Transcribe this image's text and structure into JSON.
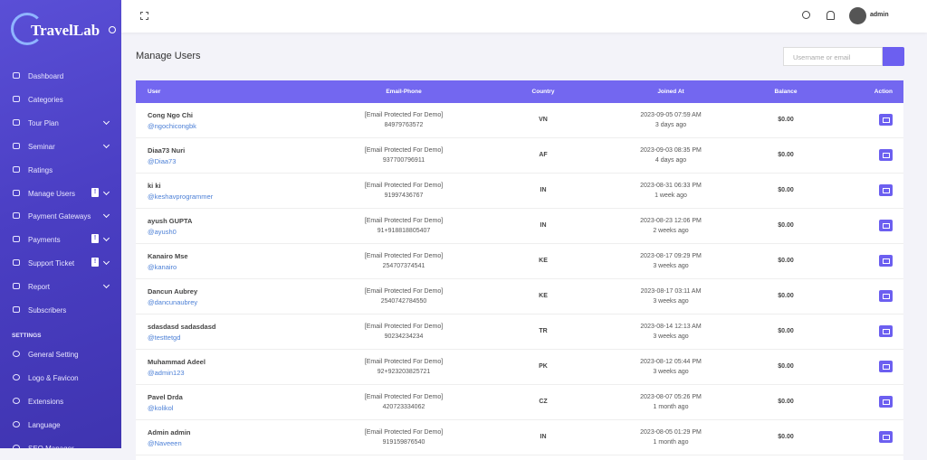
{
  "sidebar": {
    "logo": "TravelLab",
    "items": [
      {
        "label": "Dashboard",
        "submenu": false
      },
      {
        "label": "Categories",
        "submenu": false
      },
      {
        "label": "Tour Plan",
        "submenu": true
      },
      {
        "label": "Seminar",
        "submenu": true
      },
      {
        "label": "Ratings",
        "submenu": false
      },
      {
        "label": "Manage Users",
        "submenu": true,
        "badge": "!"
      },
      {
        "label": "Payment Gateways",
        "submenu": true
      },
      {
        "label": "Payments",
        "submenu": true,
        "badge": "!"
      },
      {
        "label": "Support Ticket",
        "submenu": true,
        "badge": "!"
      },
      {
        "label": "Report",
        "submenu": true
      },
      {
        "label": "Subscribers",
        "submenu": false
      }
    ],
    "section": "SETTINGS",
    "settings": [
      {
        "label": "General Setting"
      },
      {
        "label": "Logo & Favicon"
      },
      {
        "label": "Extensions"
      },
      {
        "label": "Language"
      },
      {
        "label": "SEO Manager"
      }
    ]
  },
  "header": {
    "user": "admin"
  },
  "page": {
    "title": "Manage Users",
    "search_placeholder": "Username or email"
  },
  "table": {
    "columns": [
      "User",
      "Email-Phone",
      "Country",
      "Joined At",
      "Balance",
      "Action"
    ],
    "rows": [
      {
        "name": "Cong Ngo Chi",
        "username": "@ngochicongbk",
        "email": "[Email Protected For Demo]",
        "phone": "84979763572",
        "country": "VN",
        "joined": "2023-09-05 07:59 AM",
        "ago": "3 days ago",
        "balance": "$0.00"
      },
      {
        "name": "Diaa73 Nuri",
        "username": "@Diaa73",
        "email": "[Email Protected For Demo]",
        "phone": "937700796911",
        "country": "AF",
        "joined": "2023-09-03 08:35 PM",
        "ago": "4 days ago",
        "balance": "$0.00"
      },
      {
        "name": "ki ki",
        "username": "@keshavprogrammer",
        "email": "[Email Protected For Demo]",
        "phone": "91997436767",
        "country": "IN",
        "joined": "2023-08-31 06:33 PM",
        "ago": "1 week ago",
        "balance": "$0.00"
      },
      {
        "name": "ayush GUPTA",
        "username": "@ayush0",
        "email": "[Email Protected For Demo]",
        "phone": "91+918818805407",
        "country": "IN",
        "joined": "2023-08-23 12:06 PM",
        "ago": "2 weeks ago",
        "balance": "$0.00"
      },
      {
        "name": "Kanairo Mse",
        "username": "@kanairo",
        "email": "[Email Protected For Demo]",
        "phone": "254707374541",
        "country": "KE",
        "joined": "2023-08-17 09:29 PM",
        "ago": "3 weeks ago",
        "balance": "$0.00"
      },
      {
        "name": "Dancun Aubrey",
        "username": "@dancunaubrey",
        "email": "[Email Protected For Demo]",
        "phone": "2540742784550",
        "country": "KE",
        "joined": "2023-08-17 03:11 AM",
        "ago": "3 weeks ago",
        "balance": "$0.00"
      },
      {
        "name": "sdasdasd sadasdasd",
        "username": "@testtetgd",
        "email": "[Email Protected For Demo]",
        "phone": "90234234234",
        "country": "TR",
        "joined": "2023-08-14 12:13 AM",
        "ago": "3 weeks ago",
        "balance": "$0.00"
      },
      {
        "name": "Muhammad Adeel",
        "username": "@admin123",
        "email": "[Email Protected For Demo]",
        "phone": "92+923203825721",
        "country": "PK",
        "joined": "2023-08-12 05:44 PM",
        "ago": "3 weeks ago",
        "balance": "$0.00"
      },
      {
        "name": "Pavel Drda",
        "username": "@kolikol",
        "email": "[Email Protected For Demo]",
        "phone": "420723334062",
        "country": "CZ",
        "joined": "2023-08-07 05:26 PM",
        "ago": "1 month ago",
        "balance": "$0.00"
      },
      {
        "name": "Admin admin",
        "username": "@Naveeen",
        "email": "[Email Protected For Demo]",
        "phone": "919159876540",
        "country": "IN",
        "joined": "2023-08-05 01:29 PM",
        "ago": "1 month ago",
        "balance": "$0.00"
      }
    ]
  }
}
